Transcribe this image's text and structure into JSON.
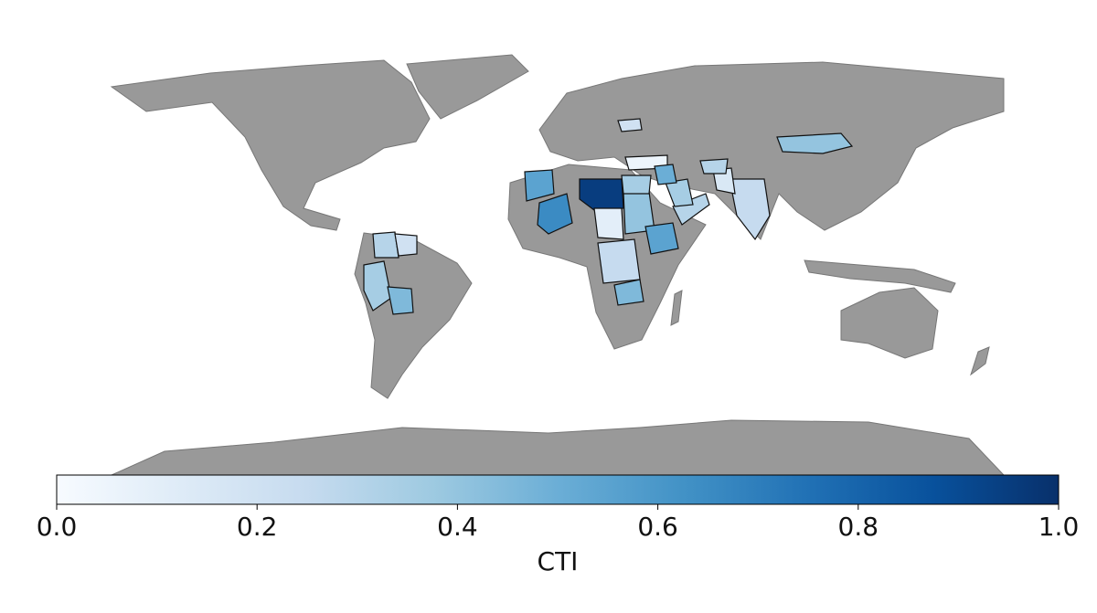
{
  "chart_data": {
    "type": "choropleth",
    "values": [
      0.95,
      0.65,
      0.4,
      0.1,
      0.35,
      0.55,
      0.3,
      0.25,
      0.45,
      0.4,
      0.25,
      0.15,
      0.3,
      0.05,
      0.55,
      0.3,
      0.2,
      0.35,
      0.45,
      0.35,
      0.5,
      0.2
    ],
    "land_color": "#999999",
    "cmap": [
      "#f7fbff",
      "#deebf7",
      "#c6dbef",
      "#9ecae1",
      "#6baed6",
      "#4292c6",
      "#2171b5",
      "#08519c",
      "#08306b"
    ],
    "colorbar": {
      "label": "CTI",
      "lim": [
        0,
        1
      ],
      "ticks": [
        {
          "value": 0,
          "label": "0.0"
        },
        0.2,
        0.4,
        0.6,
        0.8,
        {
          "value": 1,
          "label": "1.0"
        }
      ]
    }
  }
}
